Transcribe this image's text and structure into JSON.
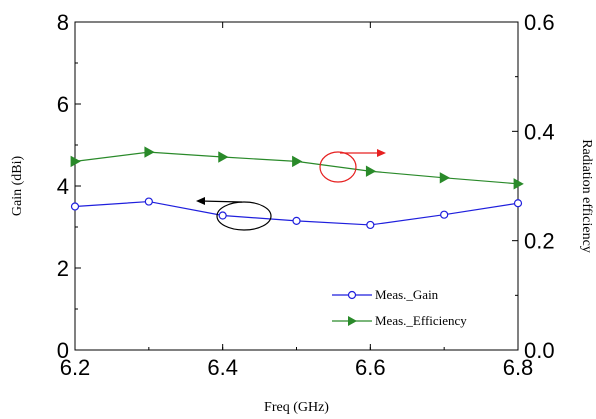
{
  "chart_data": {
    "type": "line",
    "title": "",
    "xlabel": "Freq (GHz)",
    "ylabel_left": "Gain (dBi)",
    "ylabel_right": "Radiation efficiency",
    "xlim": [
      6.2,
      6.8
    ],
    "ylim_left": [
      0,
      8
    ],
    "ylim_right": [
      0.0,
      0.6
    ],
    "x_ticks": [
      "6.2",
      "6.4",
      "6.6",
      "6.8"
    ],
    "y_left_ticks": [
      "0",
      "2",
      "4",
      "6",
      "8"
    ],
    "y_right_ticks": [
      "0.0",
      "0.2",
      "0.4",
      "0.6"
    ],
    "grid": false,
    "legend_position": "bottom-right",
    "series": [
      {
        "name": "Meas._Gain",
        "axis": "left",
        "color": "#1f1fdd",
        "marker": "open-circle",
        "x": [
          6.2,
          6.3,
          6.4,
          6.5,
          6.6,
          6.7,
          6.8
        ],
        "y": [
          3.5,
          3.62,
          3.28,
          3.15,
          3.05,
          3.3,
          3.58
        ]
      },
      {
        "name": "Meas._Efficiency",
        "axis": "right",
        "color": "#2a8a2a",
        "marker": "filled-triangle-right",
        "x": [
          6.2,
          6.3,
          6.4,
          6.5,
          6.6,
          6.7,
          6.8
        ],
        "y": [
          0.345,
          0.362,
          0.353,
          0.345,
          0.327,
          0.315,
          0.304
        ]
      }
    ],
    "annotations": [
      {
        "kind": "circle-arrow",
        "color": "#000000",
        "points_to": "left-axis"
      },
      {
        "kind": "circle-arrow",
        "color": "#e62020",
        "points_to": "right-axis"
      }
    ]
  }
}
